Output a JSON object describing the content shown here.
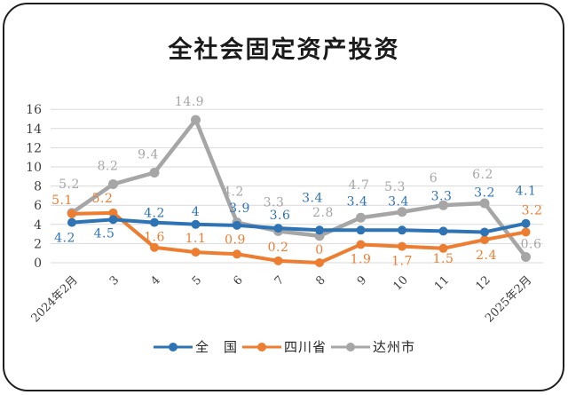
{
  "title": "全社会固定资产投资",
  "frame": {
    "border_color": "#1f1f1f",
    "background": "#ffffff"
  },
  "chart_data": {
    "type": "line",
    "title": "全社会固定资产投资",
    "categories": [
      "2024年2月",
      "3",
      "4",
      "5",
      "6",
      "7",
      "8",
      "9",
      "10",
      "11",
      "12",
      "2025年2月"
    ],
    "series": [
      {
        "name": "全　国",
        "color": "#2e74b5",
        "values": [
          4.2,
          4.5,
          4.2,
          4,
          3.9,
          3.6,
          3.4,
          3.4,
          3.4,
          3.3,
          3.2,
          4.1
        ],
        "labels": [
          "4.2",
          "4.5",
          "4.2",
          "4",
          "3.9",
          "3.6",
          "3.4",
          "3.4",
          "3.4",
          "3.3",
          "3.2",
          "4.1"
        ]
      },
      {
        "name": "四川省",
        "color": "#ed7d31",
        "values": [
          5.1,
          5.2,
          1.6,
          1.1,
          0.9,
          0.2,
          0,
          1.9,
          1.7,
          1.5,
          2.4,
          3.2
        ],
        "labels": [
          "5.1",
          "5.2",
          "1.6",
          "1.1",
          "0.9",
          "0.2",
          "0",
          "1.9",
          "1.7",
          "1.5",
          "2.4",
          "3.2"
        ]
      },
      {
        "name": "达州市",
        "color": "#a6a6a6",
        "values": [
          5.2,
          8.2,
          9.4,
          14.9,
          4.2,
          3.3,
          2.8,
          4.7,
          5.3,
          6,
          6.2,
          0.6
        ],
        "labels": [
          "5.2",
          "8.2",
          "9.4",
          "14.9",
          "4.2",
          "3.3",
          "2.8",
          "4.7",
          "5.3",
          "6",
          "6.2",
          "0.6"
        ]
      }
    ],
    "ylim": [
      0,
      16
    ],
    "ytick_step": 2,
    "yticks": [
      "0",
      "2",
      "4",
      "6",
      "8",
      "10",
      "12",
      "14",
      "16"
    ],
    "grid": true,
    "gridline_color": "#d9d9d9",
    "axis_text_color": "#3f3f3f",
    "legend_position": "bottom"
  }
}
